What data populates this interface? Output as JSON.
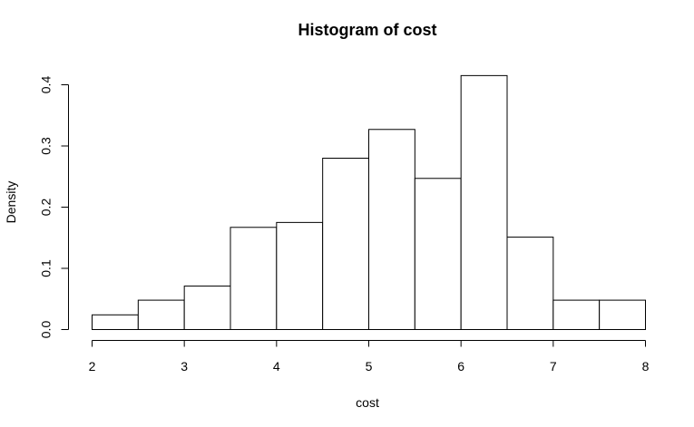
{
  "chart_data": {
    "type": "bar",
    "title": "Histogram of cost",
    "xlabel": "cost",
    "ylabel": "Density",
    "bin_edges": [
      2,
      2.5,
      3,
      3.5,
      4,
      4.5,
      5,
      5.5,
      6,
      6.5,
      7,
      7.5,
      8
    ],
    "values": [
      0.024,
      0.048,
      0.071,
      0.167,
      0.175,
      0.28,
      0.327,
      0.247,
      0.415,
      0.151,
      0.048,
      0.048
    ],
    "xlim": [
      2,
      8
    ],
    "ylim": [
      0,
      0.4
    ],
    "x_ticks": [
      2,
      3,
      4,
      5,
      6,
      7,
      8
    ],
    "x_tick_labels": [
      "2",
      "3",
      "4",
      "5",
      "6",
      "7",
      "8"
    ],
    "y_ticks": [
      0,
      0.1,
      0.2,
      0.3,
      0.4
    ],
    "y_tick_labels": [
      "0.0",
      "0.1",
      "0.2",
      "0.3",
      "0.4"
    ],
    "grid": false,
    "colors": {
      "bar_fill": "#ffffff",
      "bar_stroke": "#000000"
    }
  }
}
